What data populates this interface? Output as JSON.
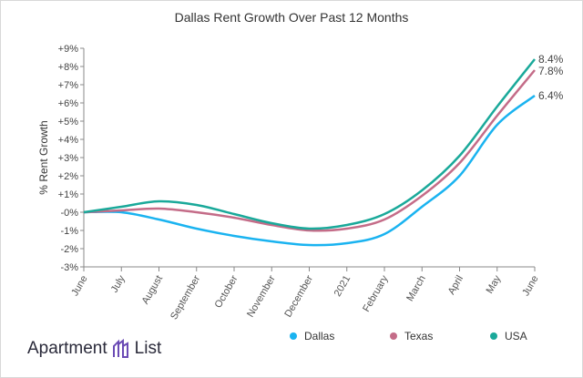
{
  "chart_data": {
    "type": "line",
    "title": "Dallas Rent Growth Over Past 12 Months",
    "ylabel": "% Rent Growth",
    "xlabel": "",
    "categories": [
      "June",
      "July",
      "August",
      "September",
      "October",
      "November",
      "December",
      "2021",
      "February",
      "March",
      "April",
      "May",
      "June"
    ],
    "yticks": [
      "-3%",
      "-2%",
      "-1%",
      "-0%",
      "+1%",
      "+2%",
      "+3%",
      "+4%",
      "+5%",
      "+6%",
      "+7%",
      "+8%",
      "+9%"
    ],
    "ylim": [
      -3,
      9
    ],
    "grid": false,
    "legend_position": "bottom-right",
    "series": [
      {
        "name": "Dallas",
        "color": "#1ab3f0",
        "values": [
          0,
          0,
          -0.4,
          -0.9,
          -1.3,
          -1.6,
          -1.8,
          -1.7,
          -1.2,
          0.3,
          2.0,
          4.8,
          6.4
        ],
        "end_label": "6.4%"
      },
      {
        "name": "Texas",
        "color": "#c46c88",
        "values": [
          0,
          0.1,
          0.2,
          0.0,
          -0.3,
          -0.7,
          -1.0,
          -0.9,
          -0.4,
          0.9,
          2.7,
          5.3,
          7.8
        ],
        "end_label": "7.8%"
      },
      {
        "name": "USA",
        "color": "#1aa99a",
        "values": [
          0,
          0.3,
          0.6,
          0.4,
          -0.1,
          -0.6,
          -0.9,
          -0.7,
          -0.1,
          1.2,
          3.1,
          5.8,
          8.4
        ],
        "end_label": "8.4%"
      }
    ]
  },
  "logo": {
    "text_left": "Apartment",
    "text_right": "List",
    "color": "#6b4bb5"
  }
}
